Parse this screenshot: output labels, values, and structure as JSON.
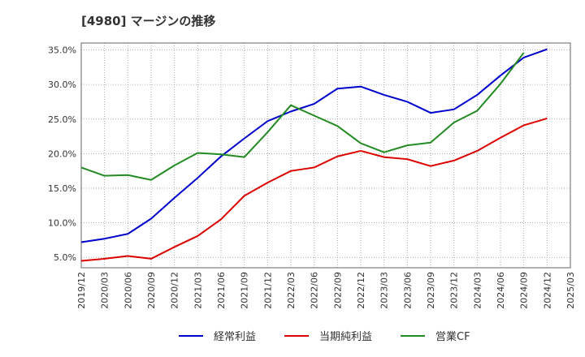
{
  "chart_data": {
    "type": "line",
    "title": "[4980]  マージンの推移",
    "xlabel": "",
    "ylabel": "",
    "ylim": [
      3.5,
      36.0
    ],
    "y_ticks": [
      "5.0%",
      "10.0%",
      "15.0%",
      "20.0%",
      "25.0%",
      "30.0%",
      "35.0%"
    ],
    "y_tick_values": [
      5,
      10,
      15,
      20,
      25,
      30,
      35
    ],
    "x_ticks": [
      "2019/12",
      "2020/03",
      "2020/06",
      "2020/09",
      "2020/12",
      "2021/03",
      "2021/06",
      "2021/09",
      "2021/12",
      "2022/03",
      "2022/06",
      "2022/09",
      "2022/12",
      "2023/03",
      "2023/06",
      "2023/09",
      "2023/12",
      "2024/03",
      "2024/06",
      "2024/09",
      "2024/12",
      "2025/03"
    ],
    "grid": true,
    "legend_position": "bottom",
    "series": [
      {
        "name": "経常利益",
        "color": "#0000cc",
        "x": [
          "2019/12",
          "2020/03",
          "2020/06",
          "2020/09",
          "2020/12",
          "2021/03",
          "2021/06",
          "2021/09",
          "2021/12",
          "2022/03",
          "2022/06",
          "2022/09",
          "2022/12",
          "2023/03",
          "2023/06",
          "2023/09",
          "2023/12",
          "2024/03",
          "2024/06",
          "2024/09",
          "2024/12"
        ],
        "values": [
          7.2,
          7.7,
          8.4,
          10.6,
          13.6,
          16.5,
          19.6,
          22.2,
          24.7,
          26.1,
          27.2,
          29.4,
          29.7,
          28.5,
          27.5,
          25.9,
          26.4,
          28.5,
          31.3,
          33.9,
          35.1
        ]
      },
      {
        "name": "当期純利益",
        "color": "#dd0000",
        "x": [
          "2019/12",
          "2020/03",
          "2020/06",
          "2020/09",
          "2020/12",
          "2021/03",
          "2021/06",
          "2021/09",
          "2021/12",
          "2022/03",
          "2022/06",
          "2022/09",
          "2022/12",
          "2023/03",
          "2023/06",
          "2023/09",
          "2023/12",
          "2024/03",
          "2024/06",
          "2024/09",
          "2024/12"
        ],
        "values": [
          4.5,
          4.8,
          5.2,
          4.8,
          6.5,
          8.1,
          10.5,
          13.9,
          15.8,
          17.5,
          18.0,
          19.6,
          20.4,
          19.5,
          19.2,
          18.2,
          19.0,
          20.4,
          22.3,
          24.1,
          25.1
        ]
      },
      {
        "name": "営業CF",
        "color": "#228b22",
        "x": [
          "2019/12",
          "2020/03",
          "2020/06",
          "2020/09",
          "2020/12",
          "2021/03",
          "2021/06",
          "2021/09",
          "2021/12",
          "2022/03",
          "2022/06",
          "2022/09",
          "2022/12",
          "2023/03",
          "2023/06",
          "2023/09",
          "2023/12",
          "2024/03",
          "2024/06",
          "2024/09"
        ],
        "values": [
          18.0,
          16.8,
          16.9,
          16.2,
          18.3,
          20.1,
          19.9,
          19.5,
          23.1,
          27.0,
          25.5,
          24.0,
          21.5,
          20.2,
          21.2,
          21.6,
          24.5,
          26.2,
          30.1,
          34.6
        ]
      }
    ]
  }
}
